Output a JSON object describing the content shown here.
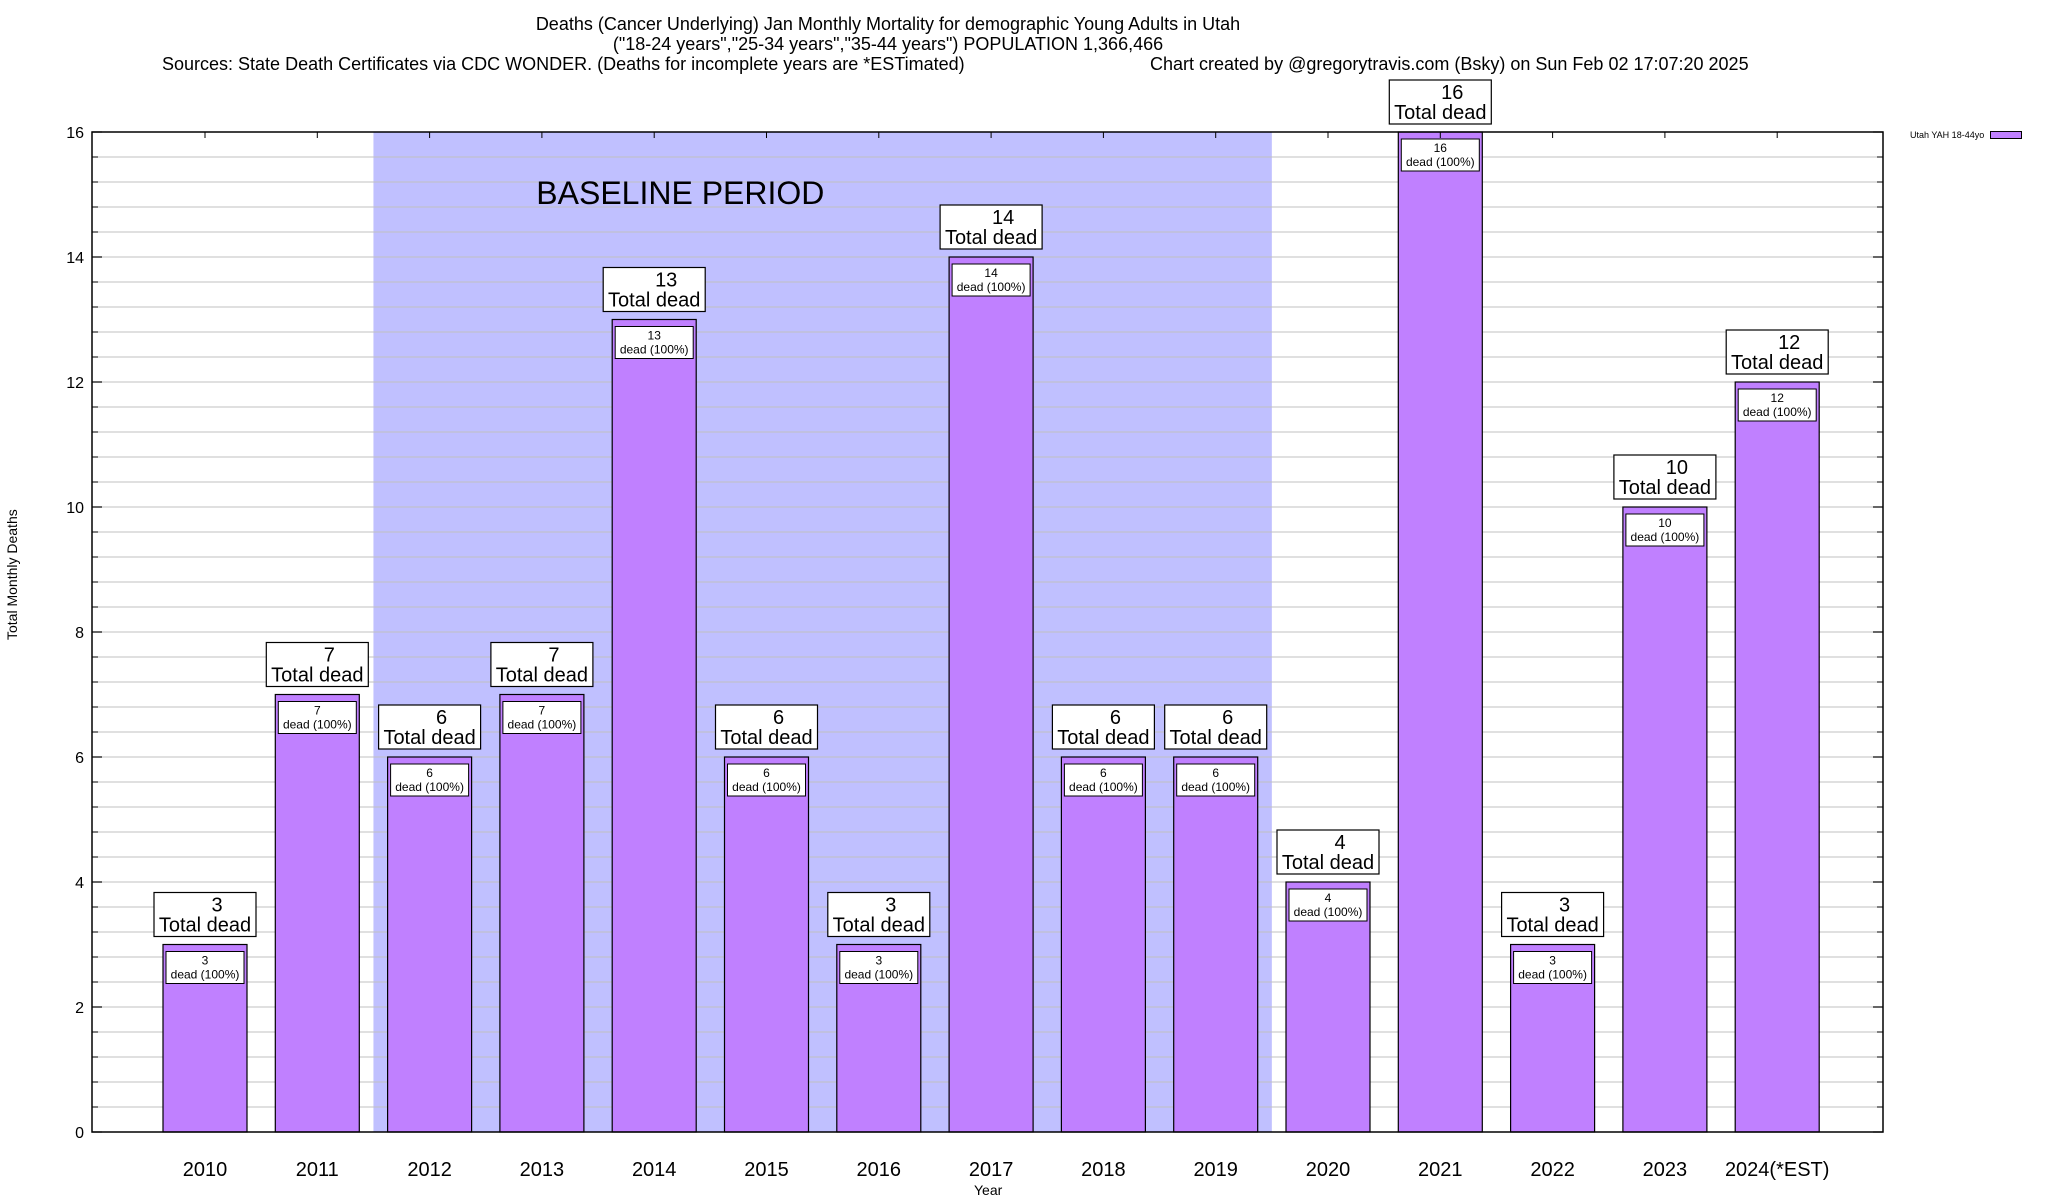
{
  "header": {
    "title_line1": "Deaths (Cancer Underlying) Jan Monthly Mortality for demographic Young Adults in Utah",
    "title_line2": "(\"18-24 years\",\"25-34 years\",\"35-44 years\") POPULATION 1,366,466",
    "sources": "Sources: State Death Certificates via CDC WONDER. (Deaths for incomplete years are *ESTimated)",
    "credit": "Chart created by @gregorytravis.com (Bsky) on Sun Feb 02 17:07:20 2025"
  },
  "colors": {
    "bar": "#c080ff",
    "baseline_region": "#c0c0ff",
    "grid": "#c0c0c0",
    "axis": "#000000"
  },
  "chart_data": {
    "type": "bar",
    "title": "Deaths (Cancer Underlying) Jan Monthly Mortality for demographic Young Adults in Utah",
    "xlabel": "Year",
    "ylabel": "Total Monthly Deaths",
    "ylim": [
      0,
      16
    ],
    "yticks": [
      0,
      2,
      4,
      6,
      8,
      10,
      12,
      14,
      16
    ],
    "yminor_step": 0.4,
    "grid": true,
    "legend": {
      "label": "Utah YAH 18-44yo",
      "placement": "top-right outside"
    },
    "categories": [
      "2010",
      "2011",
      "2012",
      "2013",
      "2014",
      "2015",
      "2016",
      "2017",
      "2018",
      "2019",
      "2020",
      "2021",
      "2022",
      "2023",
      "2024(*EST)"
    ],
    "series": [
      {
        "name": "Utah YAH 18-44yo",
        "values": [
          3,
          7,
          6,
          7,
          13,
          6,
          3,
          14,
          6,
          6,
          4,
          16,
          3,
          10,
          12
        ]
      }
    ],
    "top_label_suffix": "Total dead",
    "inner_label_suffix": "dead (100%)",
    "annotation": {
      "text": "BASELINE PERIOD",
      "start_category": "2012",
      "end_category": "2019"
    }
  }
}
